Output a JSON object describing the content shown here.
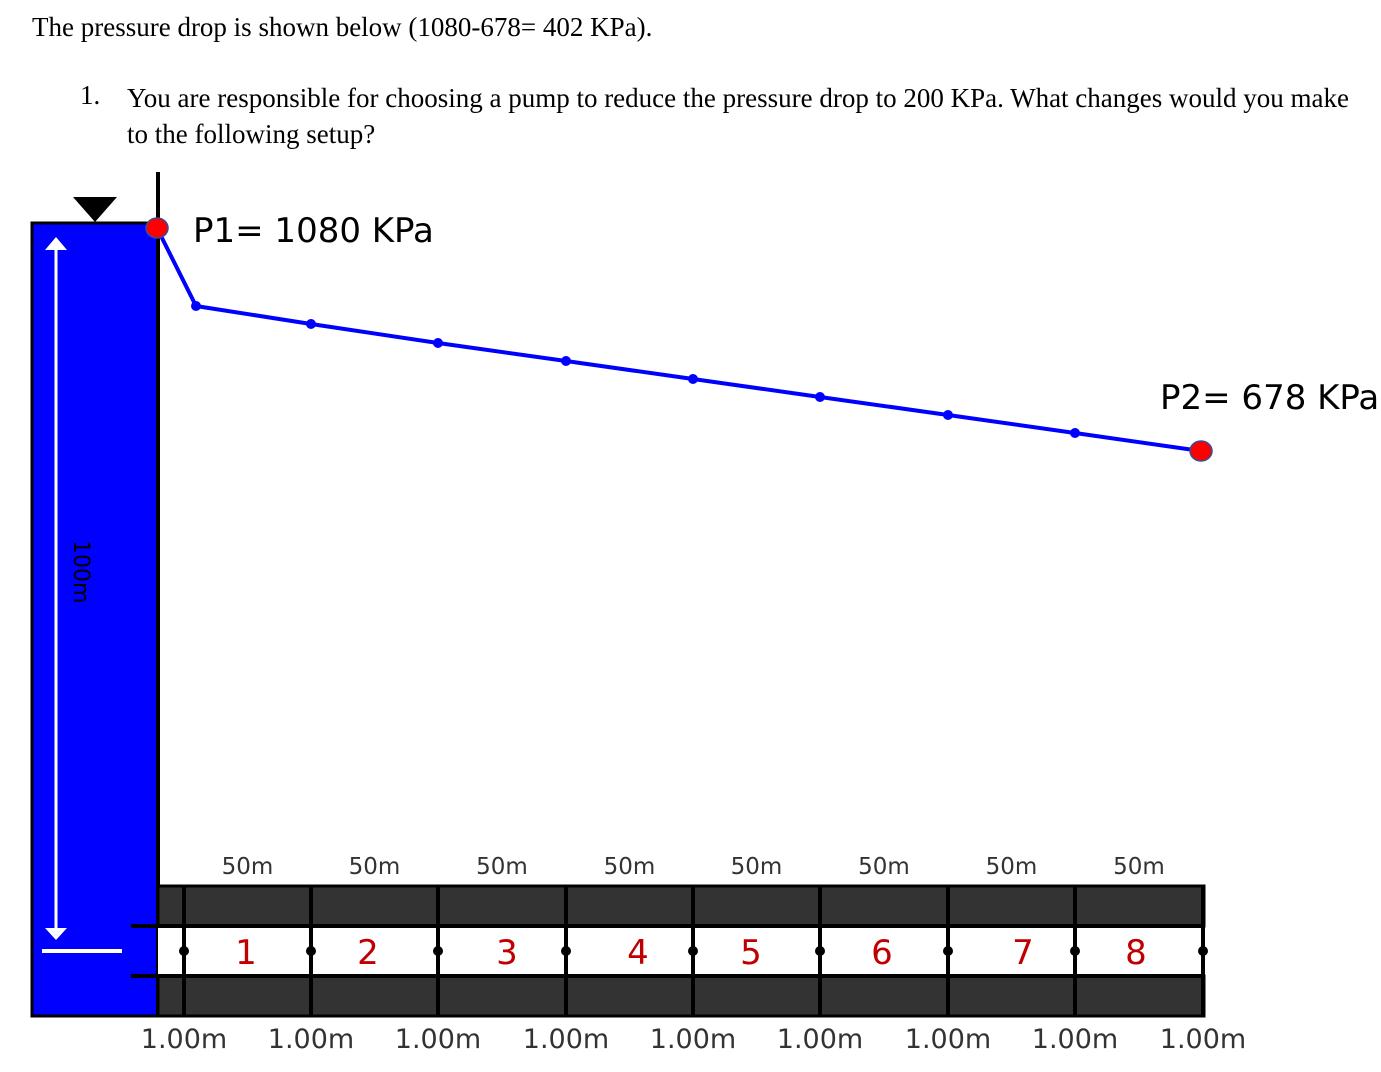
{
  "intro": "The pressure drop is shown below (1080-678= 402 KPa).",
  "question": {
    "number": "1.",
    "text": "You are responsible for choosing a pump to reduce the pressure drop to 200 KPa. What changes would you make to the following setup?"
  },
  "diagram": {
    "p1_label": "P1= 1080 KPa",
    "p2_label": "P2= 678 KPa",
    "tank_height_label": "100m",
    "segment_lengths": [
      "50m",
      "50m",
      "50m",
      "50m",
      "50m",
      "50m",
      "50m",
      "50m"
    ],
    "pipe_numbers": [
      "1",
      "2",
      "3",
      "4",
      "5",
      "6",
      "7",
      "8"
    ],
    "node_diameters": [
      "1.00m",
      "1.00m",
      "1.00m",
      "1.00m",
      "1.00m",
      "1.00m",
      "1.00m",
      "1.00m",
      "1.00m"
    ],
    "colors": {
      "water": "#0000ff",
      "line": "#0000ff",
      "endpoint": "#ff0000",
      "pipe_wall": "#333333",
      "pipe_number": "#c00000"
    }
  }
}
